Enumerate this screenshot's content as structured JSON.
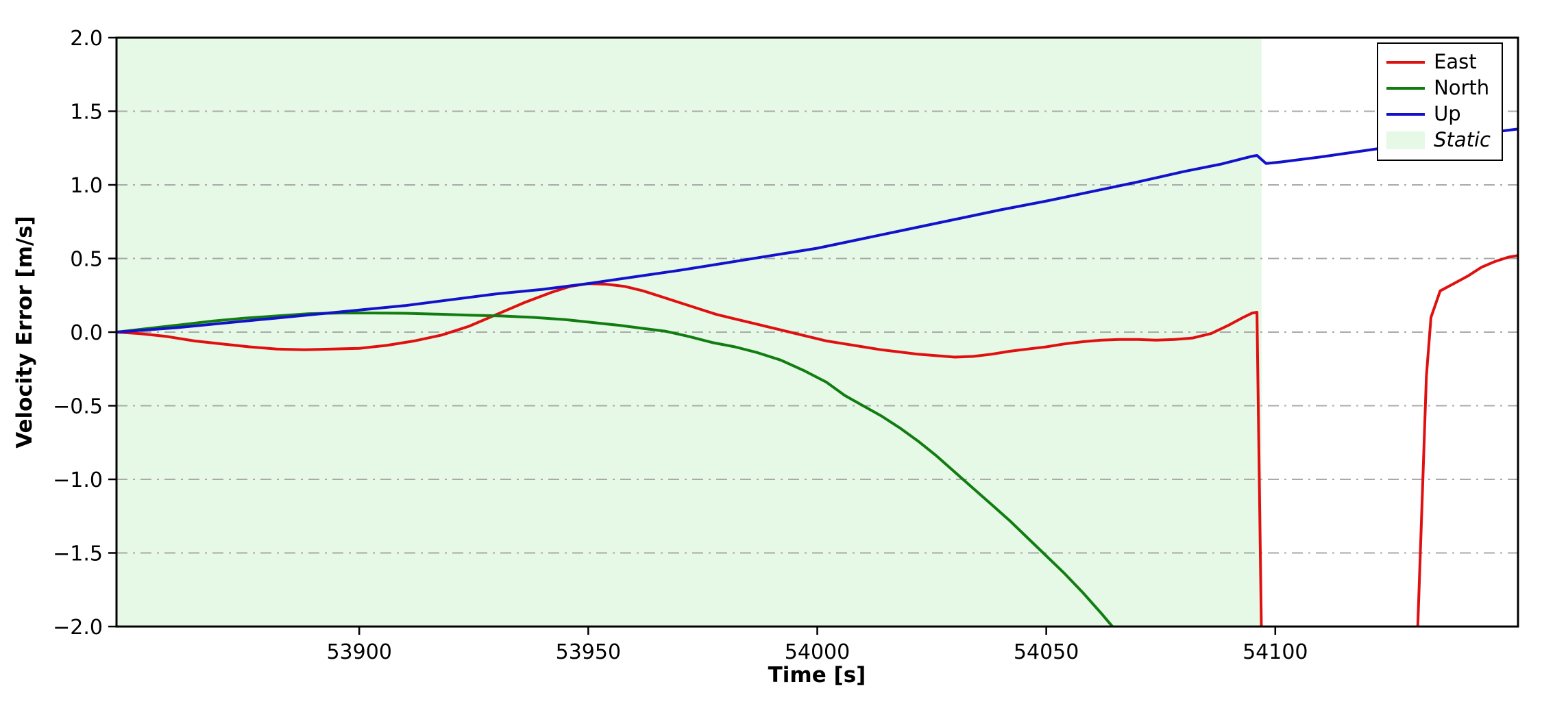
{
  "chart_data": {
    "type": "line",
    "title": "",
    "xlabel": "Time [s]",
    "ylabel": "Velocity Error [m/s]",
    "xlim": [
      53847,
      54153
    ],
    "ylim": [
      -2.0,
      2.0
    ],
    "xticks": [
      53900,
      53950,
      54000,
      54050,
      54100
    ],
    "yticks": [
      -2.0,
      -1.5,
      -1.0,
      -0.5,
      0.0,
      0.5,
      1.0,
      1.5,
      2.0
    ],
    "grid": {
      "axis": "y",
      "style": "dash-dot",
      "color": "#a9a9a9"
    },
    "legend": {
      "position": "upper-right",
      "entries": [
        "East",
        "North",
        "Up",
        "Static"
      ]
    },
    "static_region": {
      "label": "Static",
      "x_start": 53847,
      "x_end": 54097,
      "color": "#e6f8e6"
    },
    "series": [
      {
        "name": "East",
        "color": "#e01010",
        "x": [
          53847,
          53852,
          53858,
          53864,
          53870,
          53876,
          53882,
          53888,
          53894,
          53900,
          53906,
          53912,
          53918,
          53924,
          53930,
          53936,
          53942,
          53946,
          53950,
          53954,
          53958,
          53962,
          53966,
          53970,
          53974,
          53978,
          53982,
          53986,
          53990,
          53994,
          53998,
          54002,
          54006,
          54010,
          54014,
          54018,
          54022,
          54026,
          54030,
          54034,
          54038,
          54042,
          54046,
          54050,
          54054,
          54058,
          54062,
          54066,
          54070,
          54074,
          54078,
          54082,
          54086,
          54090,
          54093,
          54095,
          54096,
          54097,
          54131,
          54132,
          54133,
          54134,
          54136,
          54139,
          54142,
          54145,
          54148,
          54151,
          54153
        ],
        "y": [
          0.0,
          -0.01,
          -0.03,
          -0.06,
          -0.08,
          -0.1,
          -0.115,
          -0.12,
          -0.115,
          -0.11,
          -0.09,
          -0.06,
          -0.02,
          0.04,
          0.12,
          0.2,
          0.27,
          0.31,
          0.33,
          0.325,
          0.31,
          0.28,
          0.24,
          0.2,
          0.16,
          0.12,
          0.09,
          0.06,
          0.03,
          0.0,
          -0.03,
          -0.06,
          -0.08,
          -0.1,
          -0.12,
          -0.135,
          -0.15,
          -0.16,
          -0.17,
          -0.165,
          -0.15,
          -0.13,
          -0.115,
          -0.1,
          -0.08,
          -0.065,
          -0.055,
          -0.05,
          -0.05,
          -0.055,
          -0.05,
          -0.04,
          -0.01,
          0.05,
          0.1,
          0.13,
          0.135,
          -2.1,
          -2.1,
          -1.2,
          -0.3,
          0.1,
          0.28,
          0.33,
          0.38,
          0.44,
          0.48,
          0.51,
          0.52
        ]
      },
      {
        "name": "North",
        "color": "#117d11",
        "x": [
          53847,
          53854,
          53861,
          53868,
          53875,
          53882,
          53889,
          53896,
          53903,
          53910,
          53917,
          53924,
          53931,
          53938,
          53945,
          53951,
          53957,
          53962,
          53967,
          53972,
          53977,
          53982,
          53987,
          53992,
          53997,
          54002,
          54006,
          54010,
          54014,
          54018,
          54022,
          54026,
          54030,
          54034,
          54038,
          54042,
          54046,
          54050,
          54054,
          54058,
          54062,
          54065,
          54066
        ],
        "y": [
          0.0,
          0.025,
          0.05,
          0.075,
          0.095,
          0.11,
          0.125,
          0.13,
          0.13,
          0.128,
          0.122,
          0.115,
          0.11,
          0.1,
          0.085,
          0.065,
          0.045,
          0.025,
          0.005,
          -0.03,
          -0.07,
          -0.1,
          -0.14,
          -0.19,
          -0.26,
          -0.34,
          -0.43,
          -0.5,
          -0.57,
          -0.65,
          -0.74,
          -0.84,
          -0.95,
          -1.06,
          -1.17,
          -1.28,
          -1.4,
          -1.52,
          -1.64,
          -1.77,
          -1.91,
          -2.02,
          -2.1
        ]
      },
      {
        "name": "Up",
        "color": "#1212cc",
        "x": [
          53847,
          53860,
          53870,
          53880,
          53890,
          53900,
          53910,
          53920,
          53930,
          53940,
          53950,
          53960,
          53970,
          53980,
          53990,
          54000,
          54010,
          54020,
          54030,
          54040,
          54050,
          54060,
          54070,
          54080,
          54088,
          54095,
          54096,
          54098,
          54101,
          54110,
          54120,
          54130,
          54140,
          54148,
          54153
        ],
        "y": [
          0.0,
          0.03,
          0.06,
          0.09,
          0.12,
          0.15,
          0.18,
          0.22,
          0.26,
          0.29,
          0.33,
          0.375,
          0.42,
          0.47,
          0.52,
          0.57,
          0.635,
          0.7,
          0.765,
          0.83,
          0.89,
          0.955,
          1.02,
          1.09,
          1.14,
          1.195,
          1.2,
          1.145,
          1.155,
          1.19,
          1.235,
          1.28,
          1.325,
          1.36,
          1.38
        ]
      }
    ]
  }
}
